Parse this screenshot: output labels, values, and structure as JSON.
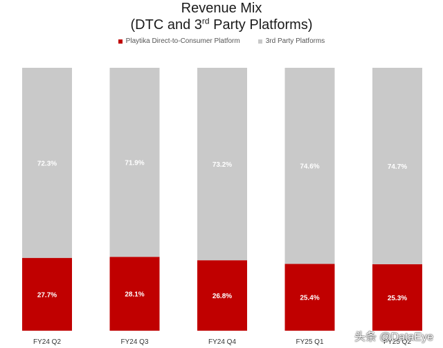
{
  "header": {
    "title_line1": "Revenue Mix",
    "title_line2_pre": "(DTC and 3",
    "title_line2_sup": "rd",
    "title_line2_post": " Party Platforms)"
  },
  "watermark": "头条 @DataEye",
  "colors": {
    "dtc": "#c00000",
    "third_party": "#c9c9c9",
    "label": "#ffffff"
  },
  "chart_data": {
    "type": "bar",
    "stacked": true,
    "percent": true,
    "categories": [
      "FY24 Q2",
      "FY24 Q3",
      "FY24 Q4",
      "FY25 Q1",
      "FY25 Q2"
    ],
    "series": [
      {
        "name": "Playtika Direct-to-Consumer Platform",
        "values": [
          27.7,
          28.1,
          26.8,
          25.4,
          25.3
        ],
        "labels": [
          "27.7%",
          "28.1%",
          "26.8%",
          "25.4%",
          "25.3%"
        ]
      },
      {
        "name": "3rd Party Platforms",
        "values": [
          72.3,
          71.9,
          73.2,
          74.6,
          74.7
        ],
        "labels": [
          "72.3%",
          "71.9%",
          "73.2%",
          "74.6%",
          "74.7%"
        ]
      }
    ],
    "ylim": [
      0,
      100
    ],
    "legend": "top-center",
    "grid": false
  }
}
